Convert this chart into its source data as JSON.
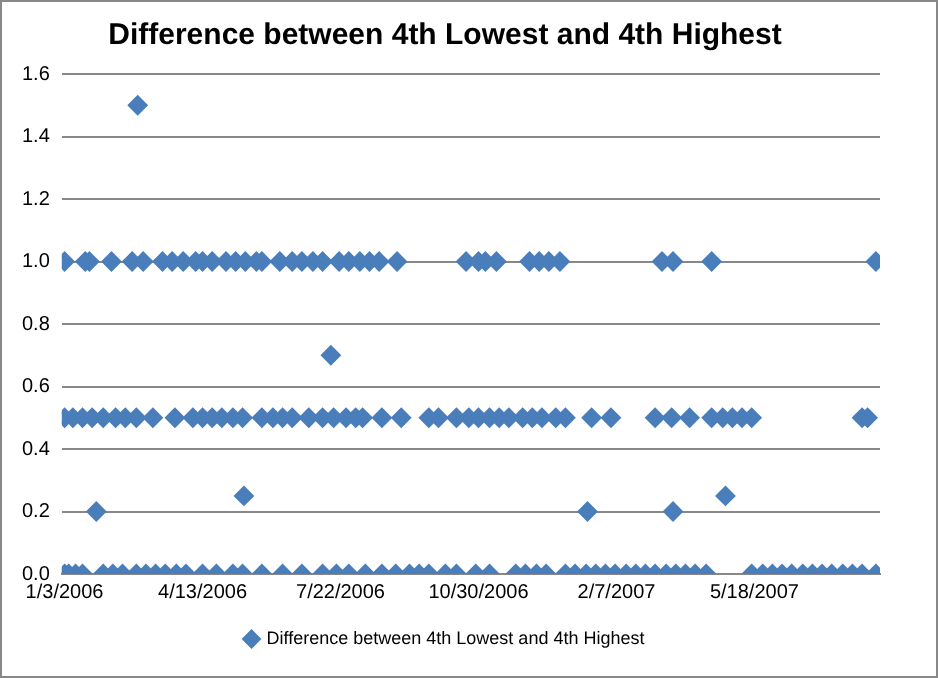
{
  "chart_data": {
    "type": "scatter",
    "title": "Difference between 4th Lowest and 4th Highest",
    "xlim": [
      "2006-01-01",
      "2007-08-17"
    ],
    "xticks": [
      {
        "value": "2006-01-03",
        "label": "1/3/2006"
      },
      {
        "value": "2006-04-13",
        "label": "4/13/2006"
      },
      {
        "value": "2006-07-22",
        "label": "7/22/2006"
      },
      {
        "value": "2006-10-30",
        "label": "10/30/2006"
      },
      {
        "value": "2007-02-07",
        "label": "2/7/2007"
      },
      {
        "value": "2007-05-18",
        "label": "5/18/2007"
      }
    ],
    "ylim": [
      0,
      1.6
    ],
    "yticks": [
      {
        "value": 0,
        "label": "0.0"
      },
      {
        "value": 0.2,
        "label": "0.2"
      },
      {
        "value": 0.4,
        "label": "0.4"
      },
      {
        "value": 0.6,
        "label": "0.6"
      },
      {
        "value": 0.8,
        "label": "0.8"
      },
      {
        "value": 1,
        "label": "1.0"
      },
      {
        "value": 1.2,
        "label": "1.2"
      },
      {
        "value": 1.4,
        "label": "1.4"
      },
      {
        "value": 1.6,
        "label": "1.6"
      }
    ],
    "grid": "y",
    "legend": "bottom",
    "marker": "diamond",
    "series": [
      {
        "name": "Difference between 4th Lowest and 4th Highest",
        "color": "#4a7ebb",
        "x": [
          "2006-01-03",
          "2006-01-18",
          "2006-01-21",
          "2006-02-06",
          "2006-02-21",
          "2006-03-01",
          "2006-03-15",
          "2006-03-22",
          "2006-03-30",
          "2006-04-08",
          "2006-04-13",
          "2006-04-20",
          "2006-04-30",
          "2006-05-07",
          "2006-05-14",
          "2006-05-22",
          "2006-05-26",
          "2006-06-08",
          "2006-06-17",
          "2006-06-24",
          "2006-07-02",
          "2006-07-09",
          "2006-07-21",
          "2006-07-28",
          "2006-08-05",
          "2006-08-12",
          "2006-08-19",
          "2006-09-01",
          "2006-10-21",
          "2006-10-30",
          "2006-11-04",
          "2006-11-12",
          "2006-12-06",
          "2006-12-13",
          "2006-12-20",
          "2006-12-28",
          "2007-03-12",
          "2007-03-20",
          "2007-04-17",
          "2007-08-14",
          "2006-02-25",
          "2006-07-15",
          "2006-05-13",
          "2007-04-27",
          "2006-01-26",
          "2007-01-17",
          "2007-03-20",
          "2006-01-03",
          "2006-01-09",
          "2006-01-16",
          "2006-01-23",
          "2006-01-31",
          "2006-02-09",
          "2006-02-16",
          "2006-02-24",
          "2006-03-08",
          "2006-03-24",
          "2006-04-06",
          "2006-04-13",
          "2006-04-20",
          "2006-04-27",
          "2006-05-05",
          "2006-05-12",
          "2006-05-26",
          "2006-06-03",
          "2006-06-10",
          "2006-06-17",
          "2006-06-29",
          "2006-07-09",
          "2006-07-17",
          "2006-07-26",
          "2006-08-02",
          "2006-08-07",
          "2006-08-21",
          "2006-09-04",
          "2006-09-24",
          "2006-10-01",
          "2006-10-14",
          "2006-10-23",
          "2006-10-30",
          "2006-11-07",
          "2006-11-14",
          "2006-11-21",
          "2006-12-01",
          "2006-12-08",
          "2006-12-15",
          "2006-12-25",
          "2007-01-01",
          "2007-01-20",
          "2007-02-03",
          "2007-03-07",
          "2007-03-19",
          "2007-04-01",
          "2007-04-17",
          "2007-04-25",
          "2007-05-02",
          "2007-05-09",
          "2007-05-16",
          "2007-08-04",
          "2007-08-08",
          "2006-01-03",
          "2006-01-06",
          "2006-01-11",
          "2006-01-16",
          "2006-01-31",
          "2006-02-07",
          "2006-02-14",
          "2006-02-24",
          "2006-03-03",
          "2006-03-10",
          "2006-03-17",
          "2006-03-25",
          "2006-04-01",
          "2006-04-13",
          "2006-04-23",
          "2006-05-05",
          "2006-05-12",
          "2006-05-26",
          "2006-06-10",
          "2006-06-24",
          "2006-07-09",
          "2006-07-19",
          "2006-07-28",
          "2006-08-09",
          "2006-08-21",
          "2006-08-31",
          "2006-09-10",
          "2006-09-17",
          "2006-09-24",
          "2006-10-06",
          "2006-10-14",
          "2006-10-28",
          "2006-11-07",
          "2006-11-26",
          "2006-12-03",
          "2006-12-11",
          "2006-12-18",
          "2007-01-01",
          "2007-01-08",
          "2007-01-16",
          "2007-01-23",
          "2007-01-30",
          "2007-02-06",
          "2007-02-14",
          "2007-02-21",
          "2007-02-28",
          "2007-03-07",
          "2007-03-15",
          "2007-03-22",
          "2007-03-29",
          "2007-04-05",
          "2007-04-13",
          "2007-05-16",
          "2007-05-24",
          "2007-05-31",
          "2007-06-07",
          "2007-06-14",
          "2007-06-22",
          "2007-06-29",
          "2007-07-06",
          "2007-07-13",
          "2007-07-21",
          "2007-07-28",
          "2007-08-04",
          "2007-08-14"
        ],
        "values": [
          1,
          1,
          1,
          1,
          1,
          1,
          1,
          1,
          1,
          1,
          1,
          1,
          1,
          1,
          1,
          1,
          1,
          1,
          1,
          1,
          1,
          1,
          1,
          1,
          1,
          1,
          1,
          1,
          1,
          1,
          1,
          1,
          1,
          1,
          1,
          1,
          1,
          1,
          1,
          1,
          1.5,
          0.7,
          0.25,
          0.25,
          0.2,
          0.2,
          0.2,
          0.5,
          0.5,
          0.5,
          0.5,
          0.5,
          0.5,
          0.5,
          0.5,
          0.5,
          0.5,
          0.5,
          0.5,
          0.5,
          0.5,
          0.5,
          0.5,
          0.5,
          0.5,
          0.5,
          0.5,
          0.5,
          0.5,
          0.5,
          0.5,
          0.5,
          0.5,
          0.5,
          0.5,
          0.5,
          0.5,
          0.5,
          0.5,
          0.5,
          0.5,
          0.5,
          0.5,
          0.5,
          0.5,
          0.5,
          0.5,
          0.5,
          0.5,
          0.5,
          0.5,
          0.5,
          0.5,
          0.5,
          0.5,
          0.5,
          0.5,
          0.5,
          0.5,
          0.5,
          0,
          0,
          0,
          0,
          0,
          0,
          0,
          0,
          0,
          0,
          0,
          0,
          0,
          0,
          0,
          0,
          0,
          0,
          0,
          0,
          0,
          0,
          0,
          0,
          0,
          0,
          0,
          0,
          0,
          0,
          0,
          0,
          0,
          0,
          0,
          0,
          0,
          0,
          0,
          0,
          0,
          0,
          0,
          0,
          0,
          0,
          0,
          0,
          0,
          0,
          0,
          0,
          0,
          0,
          0,
          0,
          0,
          0,
          0,
          0,
          0,
          0,
          0,
          0,
          0
        ]
      }
    ]
  }
}
